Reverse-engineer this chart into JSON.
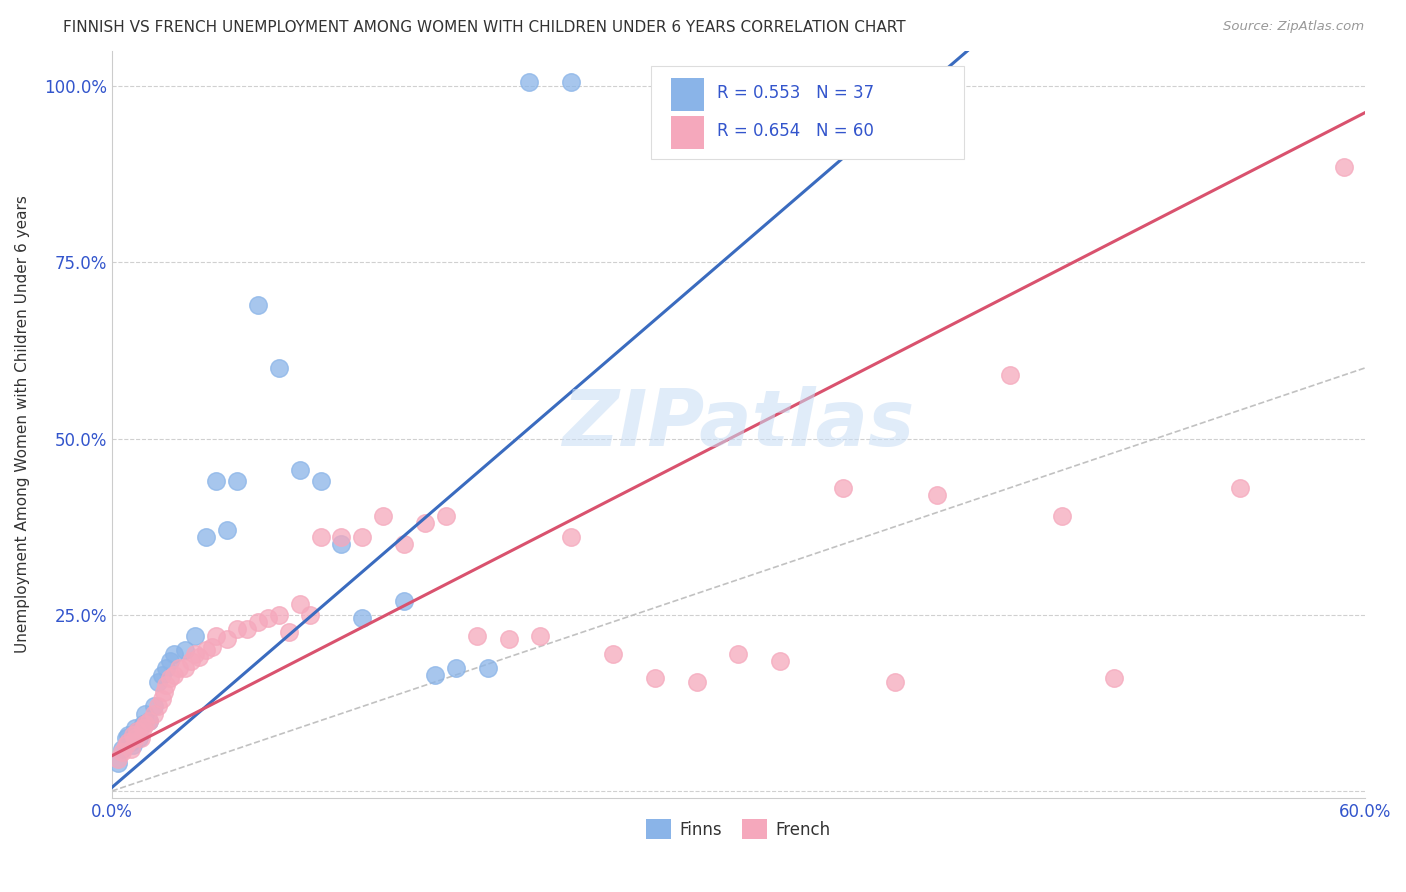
{
  "title": "FINNISH VS FRENCH UNEMPLOYMENT AMONG WOMEN WITH CHILDREN UNDER 6 YEARS CORRELATION CHART",
  "source": "Source: ZipAtlas.com",
  "ylabel": "Unemployment Among Women with Children Under 6 years",
  "xlim": [
    0.0,
    0.6
  ],
  "ylim": [
    -0.01,
    1.05
  ],
  "xticks": [
    0.0,
    0.12,
    0.24,
    0.36,
    0.48,
    0.6
  ],
  "yticks": [
    0.0,
    0.25,
    0.5,
    0.75,
    1.0
  ],
  "bg_color": "#ffffff",
  "grid_color": "#d0d0d0",
  "watermark": "ZIPatlas",
  "legend_r1_text": "R = 0.553   N = 37",
  "legend_r2_text": "R = 0.654   N = 60",
  "finns_color": "#8ab4e8",
  "french_color": "#f5a8bc",
  "finns_line_color": "#3a6bbf",
  "french_line_color": "#d9526e",
  "ref_line_color": "#bbbbbb",
  "finns_line_slope": 2.55,
  "finns_line_intercept": 0.005,
  "french_line_slope": 1.52,
  "french_line_intercept": 0.05,
  "finns_x": [
    0.003,
    0.005,
    0.007,
    0.008,
    0.009,
    0.01,
    0.011,
    0.012,
    0.013,
    0.015,
    0.016,
    0.018,
    0.02,
    0.022,
    0.024,
    0.026,
    0.028,
    0.03,
    0.035,
    0.04,
    0.045,
    0.05,
    0.055,
    0.06,
    0.07,
    0.08,
    0.09,
    0.1,
    0.11,
    0.12,
    0.14,
    0.155,
    0.165,
    0.18,
    0.2,
    0.22,
    0.36
  ],
  "finns_y": [
    0.04,
    0.06,
    0.075,
    0.08,
    0.07,
    0.065,
    0.09,
    0.085,
    0.075,
    0.095,
    0.11,
    0.1,
    0.12,
    0.155,
    0.165,
    0.175,
    0.185,
    0.195,
    0.2,
    0.22,
    0.36,
    0.44,
    0.37,
    0.44,
    0.69,
    0.6,
    0.455,
    0.44,
    0.35,
    0.245,
    0.27,
    0.165,
    0.175,
    0.175,
    1.005,
    1.005,
    1.005
  ],
  "french_x": [
    0.003,
    0.005,
    0.007,
    0.008,
    0.009,
    0.01,
    0.011,
    0.012,
    0.014,
    0.015,
    0.016,
    0.018,
    0.02,
    0.022,
    0.024,
    0.025,
    0.026,
    0.028,
    0.03,
    0.032,
    0.035,
    0.038,
    0.04,
    0.042,
    0.045,
    0.048,
    0.05,
    0.055,
    0.06,
    0.065,
    0.07,
    0.075,
    0.08,
    0.085,
    0.09,
    0.095,
    0.1,
    0.11,
    0.12,
    0.13,
    0.14,
    0.15,
    0.16,
    0.175,
    0.19,
    0.205,
    0.22,
    0.24,
    0.26,
    0.28,
    0.3,
    0.32,
    0.35,
    0.375,
    0.395,
    0.43,
    0.455,
    0.48,
    0.54,
    0.59
  ],
  "french_y": [
    0.045,
    0.055,
    0.065,
    0.07,
    0.06,
    0.08,
    0.075,
    0.085,
    0.075,
    0.09,
    0.095,
    0.1,
    0.11,
    0.12,
    0.13,
    0.14,
    0.15,
    0.16,
    0.165,
    0.175,
    0.175,
    0.185,
    0.195,
    0.19,
    0.2,
    0.205,
    0.22,
    0.215,
    0.23,
    0.23,
    0.24,
    0.245,
    0.25,
    0.225,
    0.265,
    0.25,
    0.36,
    0.36,
    0.36,
    0.39,
    0.35,
    0.38,
    0.39,
    0.22,
    0.215,
    0.22,
    0.36,
    0.195,
    0.16,
    0.155,
    0.195,
    0.185,
    0.43,
    0.155,
    0.42,
    0.59,
    0.39,
    0.16,
    0.43,
    0.885
  ]
}
